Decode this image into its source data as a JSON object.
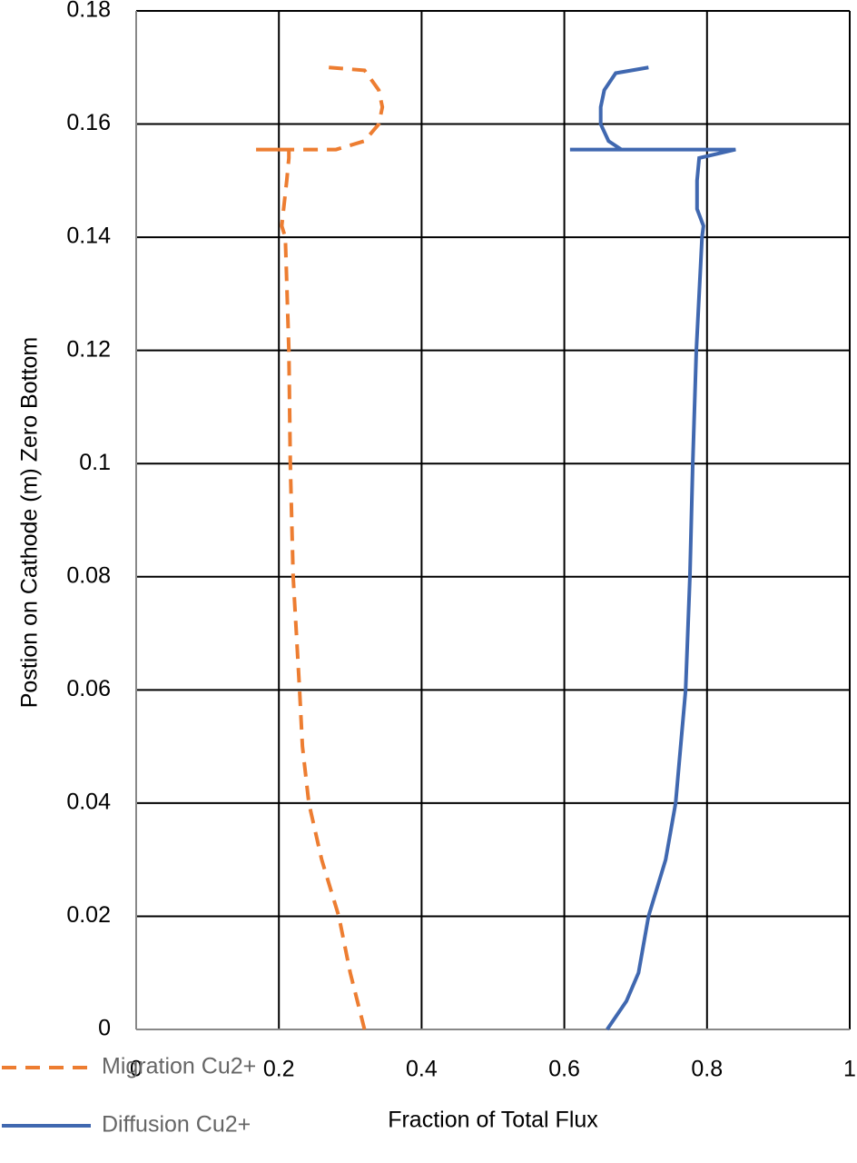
{
  "chart_data": {
    "type": "line",
    "xlabel": "Fraction of Total Flux",
    "ylabel": "Postion on Cathode (m) Zero Bottom",
    "xlim": [
      0,
      1
    ],
    "xticks": [
      0,
      0.2,
      0.4,
      0.6,
      0.8,
      1
    ],
    "ylim": [
      0,
      0.18
    ],
    "yticks": [
      0,
      0.02,
      0.04,
      0.06,
      0.08,
      0.1,
      0.12,
      0.14,
      0.16,
      0.18
    ],
    "grid": true,
    "legend": "bottom-left",
    "series": [
      {
        "name": "Migration Cu2+",
        "color": "#ed7d31",
        "dashed": true,
        "x": [
          0.32,
          0.3,
          0.284,
          0.26,
          0.242,
          0.233,
          0.229,
          0.22,
          0.216,
          0.214,
          0.209,
          0.204,
          0.211,
          0.214,
          0.214,
          0.168,
          0.28,
          0.32,
          0.34,
          0.345,
          0.34,
          0.32,
          0.27
        ],
        "y": [
          0,
          0.01,
          0.02,
          0.03,
          0.04,
          0.05,
          0.06,
          0.08,
          0.1,
          0.12,
          0.14,
          0.142,
          0.15,
          0.154,
          0.1555,
          0.1555,
          0.1555,
          0.157,
          0.16,
          0.163,
          0.166,
          0.1695,
          0.17
        ]
      },
      {
        "name": "Diffusion Cu2+",
        "color": "#4068b0",
        "dashed": false,
        "x": [
          0.66,
          0.687,
          0.704,
          0.718,
          0.742,
          0.756,
          0.763,
          0.77,
          0.776,
          0.78,
          0.785,
          0.793,
          0.795,
          0.786,
          0.786,
          0.789,
          0.84,
          0.608,
          0.68,
          0.662,
          0.651,
          0.651,
          0.656,
          0.672,
          0.718
        ],
        "y": [
          0,
          0.005,
          0.01,
          0.02,
          0.03,
          0.04,
          0.05,
          0.06,
          0.08,
          0.1,
          0.12,
          0.14,
          0.142,
          0.145,
          0.15,
          0.154,
          0.1555,
          0.1555,
          0.1555,
          0.157,
          0.16,
          0.163,
          0.166,
          0.169,
          0.17
        ]
      }
    ]
  }
}
